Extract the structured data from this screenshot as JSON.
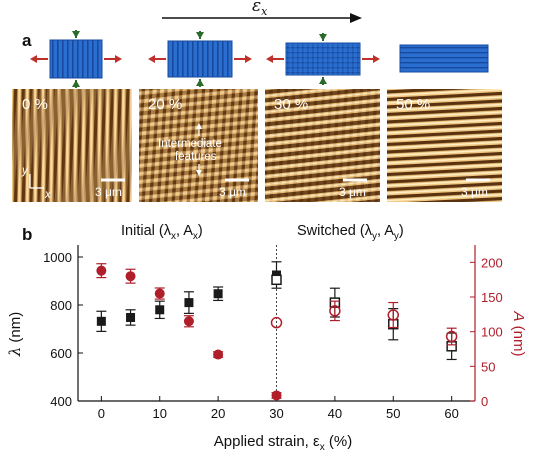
{
  "panel_a": {
    "label": "a",
    "strain_symbol": "ε",
    "strain_sub": "x",
    "images": [
      {
        "strain_label": "0 %",
        "scale_label": "3 μm"
      },
      {
        "strain_label": "20 %",
        "scale_label": "3 μm",
        "annotation_line1": "Intermediate",
        "annotation_line2": "features"
      },
      {
        "strain_label": "30 %",
        "scale_label": "3 μm"
      },
      {
        "strain_label": "50 %",
        "scale_label": "3 μm"
      }
    ],
    "axis_labels": {
      "y": "y",
      "x": "x"
    },
    "colors": {
      "film": "#2a6fd0",
      "arrow_x": "#c0302a",
      "arrow_y": "#2a6a2a",
      "afm_light": "#f0c680",
      "afm_dark": "#5a3210"
    }
  },
  "panel_b": {
    "label": "b",
    "title_initial": "Initial (λ",
    "title_initial_s1": "x",
    "title_initial_mid": ", A",
    "title_initial_s2": "x",
    "title_initial_end": ")",
    "title_switched": "Switched (λ",
    "title_switched_s1": "y",
    "title_switched_mid": ", A",
    "title_switched_s2": "y",
    "title_switched_end": ")",
    "xlabel_main": "Applied strain, ε",
    "xlabel_sub": "x",
    "xlabel_end": " (%)",
    "ylabel_left_sym": "λ",
    "ylabel_left_unit": " (nm)",
    "ylabel_right_sym": "A",
    "ylabel_right_unit": " (nm)"
  },
  "chart_data": {
    "type": "scatter",
    "x_ticks": [
      0,
      10,
      20,
      30,
      40,
      50,
      60
    ],
    "xlim": [
      -4,
      64
    ],
    "ylim_left": [
      400,
      1050
    ],
    "y_ticks_left": [
      400,
      600,
      800,
      1000
    ],
    "ylim_right": [
      0,
      225
    ],
    "y_ticks_right": [
      0,
      50,
      100,
      150,
      200
    ],
    "switch_line_x": 30,
    "colors": {
      "wavelength": "#1a1a1a",
      "amplitude": "#b01e2a"
    },
    "series": [
      {
        "axis": "left",
        "marker": "filled-square",
        "x": [
          0,
          5,
          10,
          15,
          20,
          30
        ],
        "y": [
          732,
          748,
          780,
          810,
          847,
          925
        ],
        "yerr": [
          42,
          32,
          36,
          45,
          28,
          55
        ]
      },
      {
        "axis": "left",
        "marker": "open-square",
        "x": [
          30,
          40,
          50,
          60
        ],
        "y": [
          905,
          810,
          720,
          628
        ],
        "yerr": [
          0,
          60,
          65,
          55
        ]
      },
      {
        "axis": "right",
        "marker": "filled-circle",
        "x": [
          0,
          5,
          10,
          15,
          20,
          30
        ],
        "y": [
          188,
          180,
          155,
          115,
          67,
          8
        ],
        "yerr": [
          10,
          10,
          8,
          8,
          4,
          4
        ]
      },
      {
        "axis": "right",
        "marker": "open-circle",
        "x": [
          30,
          40,
          50,
          60
        ],
        "y": [
          113,
          130,
          124,
          93
        ],
        "yerr": [
          0,
          14,
          18,
          12
        ]
      }
    ]
  }
}
